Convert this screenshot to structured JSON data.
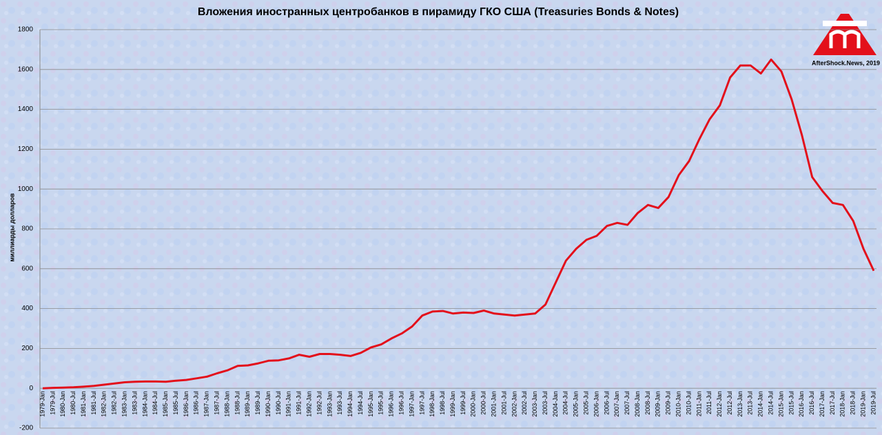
{
  "chart_data": {
    "type": "line",
    "title": "Вложения иностранных центробанков в пирамиду ГКО США (Treasuries Bonds & Notes)",
    "y_label": "миллиарды долларов",
    "watermark": "AfterShock.News, 2019",
    "categories": [
      "1979-Jan",
      "1979-Jul",
      "1980-Jan",
      "1980-Jul",
      "1981-Jan",
      "1981-Jul",
      "1982-Jan",
      "1982-Jul",
      "1983-Jan",
      "1983-Jul",
      "1984-Jan",
      "1984-Jul",
      "1985-Jan",
      "1985-Jul",
      "1986-Jan",
      "1986-Jul",
      "1987-Jan",
      "1987-Jul",
      "1988-Jan",
      "1988-Jul",
      "1989-Jan",
      "1989-Jul",
      "1990-Jan",
      "1990-Jul",
      "1991-Jan",
      "1991-Jul",
      "1992-Jan",
      "1992-Jul",
      "1993-Jan",
      "1993-Jul",
      "1994-Jan",
      "1994-Jul",
      "1995-Jan",
      "1995-Jul",
      "1996-Jan",
      "1996-Jul",
      "1997-Jan",
      "1997-Jul",
      "1998-Jan",
      "1998-Jul",
      "1999-Jan",
      "1999-Jul",
      "2000-Jan",
      "2000-Jul",
      "2001-Jan",
      "2001-Jul",
      "2002-Jan",
      "2002-Jul",
      "2003-Jan",
      "2003-Jul",
      "2004-Jan",
      "2004-Jul",
      "2005-Jan",
      "2005-Jul",
      "2006-Jan",
      "2006-Jul",
      "2007-Jan",
      "2007-Jul",
      "2008-Jan",
      "2008-Jul",
      "2009-Jan",
      "2009-Jul",
      "2010-Jan",
      "2010-Jul",
      "2011-Jan",
      "2011-Jul",
      "2012-Jan",
      "2012-Jul",
      "2013-Jan",
      "2013-Jul",
      "2014-Jan",
      "2014-Jul",
      "2015-Jan",
      "2015-Jul",
      "2016-Jan",
      "2016-Jul",
      "2017-Jan",
      "2017-Jul",
      "2018-Jan",
      "2018-Jul",
      "2019-Jan",
      "2019-Jul"
    ],
    "series": [
      {
        "color": "#e3101b",
        "values": [
          0,
          2,
          3,
          5,
          8,
          12,
          18,
          24,
          30,
          33,
          34,
          34,
          33,
          38,
          42,
          50,
          58,
          75,
          90,
          112,
          115,
          125,
          138,
          140,
          150,
          168,
          158,
          172,
          172,
          168,
          162,
          178,
          205,
          220,
          250,
          275,
          310,
          365,
          385,
          388,
          375,
          380,
          378,
          390,
          375,
          370,
          365,
          370,
          375,
          420,
          530,
          640,
          700,
          745,
          765,
          815,
          830,
          820,
          880,
          920,
          905,
          960,
          1070,
          1140,
          1250,
          1350,
          1420,
          1560,
          1620,
          1620,
          1580,
          1650,
          1590,
          1450,
          1270,
          1060,
          990,
          930,
          920,
          840,
          700,
          590
        ]
      }
    ],
    "ylim": [
      -200,
      1800
    ],
    "yticks": [
      -200,
      0,
      200,
      400,
      600,
      800,
      1000,
      1200,
      1400,
      1600,
      1800
    ],
    "grid": true
  }
}
